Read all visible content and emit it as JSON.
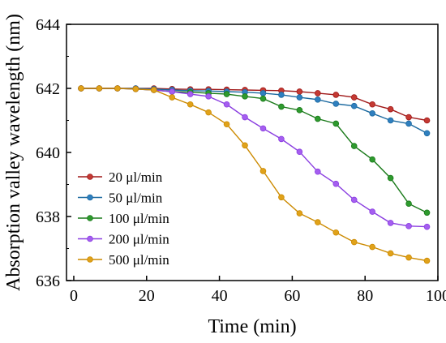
{
  "chart_data": {
    "type": "line",
    "xlabel": "Time (min)",
    "ylabel": "Absorption valley wavelength (nm)",
    "xlim": [
      -2,
      100
    ],
    "ylim": [
      636,
      644
    ],
    "xticks": [
      0,
      20,
      40,
      60,
      80,
      100
    ],
    "yticks": [
      636,
      638,
      640,
      642,
      644
    ],
    "grid": false,
    "legend_position": "bottom-left",
    "x": [
      2,
      7,
      12,
      17,
      22,
      27,
      32,
      37,
      42,
      47,
      52,
      57,
      62,
      67,
      72,
      77,
      82,
      87,
      92,
      97
    ],
    "series": [
      {
        "name": "20 μl/min",
        "color": "#a01818",
        "fill": "#c43a33",
        "values": [
          642.0,
          642.0,
          642.0,
          642.0,
          642.0,
          641.98,
          641.97,
          641.97,
          641.96,
          641.95,
          641.94,
          641.93,
          641.9,
          641.85,
          641.8,
          641.72,
          641.5,
          641.35,
          641.1,
          641.0
        ]
      },
      {
        "name": "50 μl/min",
        "color": "#1c6aa0",
        "fill": "#2f7fbf",
        "values": [
          642.0,
          642.0,
          642.0,
          642.0,
          641.98,
          641.95,
          641.93,
          641.92,
          641.9,
          641.88,
          641.85,
          641.8,
          641.72,
          641.65,
          641.52,
          641.45,
          641.22,
          641.0,
          640.9,
          640.6
        ]
      },
      {
        "name": "100 μl/min",
        "color": "#1a7a1a",
        "fill": "#2e9a2e",
        "values": [
          642.0,
          642.0,
          642.0,
          641.98,
          641.95,
          641.9,
          641.88,
          641.85,
          641.82,
          641.75,
          641.68,
          641.43,
          641.32,
          641.05,
          640.9,
          640.2,
          639.78,
          639.2,
          638.4,
          638.12
        ]
      },
      {
        "name": "200 μl/min",
        "color": "#8a3ee0",
        "fill": "#a55ef0",
        "values": [
          642.0,
          642.0,
          642.0,
          641.98,
          641.95,
          641.9,
          641.82,
          641.75,
          641.5,
          641.1,
          640.75,
          640.42,
          640.02,
          639.4,
          639.02,
          638.52,
          638.15,
          637.8,
          637.7,
          637.68
        ]
      },
      {
        "name": "500 μl/min",
        "color": "#cc8a00",
        "fill": "#e0a21a",
        "values": [
          642.0,
          642.0,
          642.0,
          641.98,
          641.95,
          641.72,
          641.5,
          641.25,
          640.88,
          640.22,
          639.42,
          638.6,
          638.1,
          637.82,
          637.5,
          637.2,
          637.05,
          636.85,
          636.72,
          636.62
        ]
      }
    ]
  }
}
